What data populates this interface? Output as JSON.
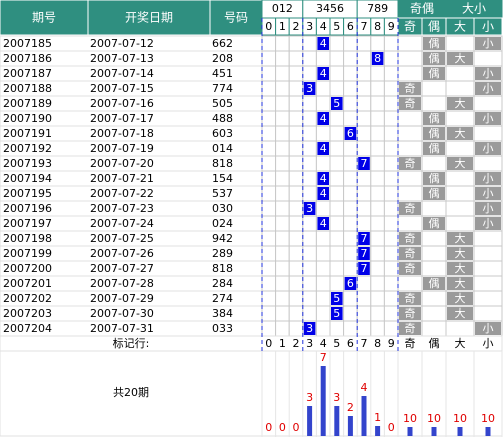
{
  "header": {
    "columns": [
      "期号",
      "开奖日期",
      "号码"
    ],
    "groups": [
      "012",
      "3456",
      "789",
      "奇偶",
      "大小"
    ],
    "digits": [
      "0",
      "1",
      "2",
      "3",
      "4",
      "5",
      "6",
      "7",
      "8",
      "9"
    ],
    "parity": [
      "奇",
      "偶"
    ],
    "size": [
      "大",
      "小"
    ]
  },
  "rows": [
    {
      "issue": "2007185",
      "date": "2007-07-12",
      "number": "662",
      "span": 4,
      "parity": "偶",
      "size": "小"
    },
    {
      "issue": "2007186",
      "date": "2007-07-13",
      "number": "208",
      "span": 8,
      "parity": "偶",
      "size": "大"
    },
    {
      "issue": "2007187",
      "date": "2007-07-14",
      "number": "451",
      "span": 4,
      "parity": "偶",
      "size": "小"
    },
    {
      "issue": "2007188",
      "date": "2007-07-15",
      "number": "774",
      "span": 3,
      "parity": "奇",
      "size": "小"
    },
    {
      "issue": "2007189",
      "date": "2007-07-16",
      "number": "505",
      "span": 5,
      "parity": "奇",
      "size": "大"
    },
    {
      "issue": "2007190",
      "date": "2007-07-17",
      "number": "488",
      "span": 4,
      "parity": "偶",
      "size": "小"
    },
    {
      "issue": "2007191",
      "date": "2007-07-18",
      "number": "603",
      "span": 6,
      "parity": "偶",
      "size": "大"
    },
    {
      "issue": "2007192",
      "date": "2007-07-19",
      "number": "014",
      "span": 4,
      "parity": "偶",
      "size": "小"
    },
    {
      "issue": "2007193",
      "date": "2007-07-20",
      "number": "818",
      "span": 7,
      "parity": "奇",
      "size": "大"
    },
    {
      "issue": "2007194",
      "date": "2007-07-21",
      "number": "154",
      "span": 4,
      "parity": "偶",
      "size": "小"
    },
    {
      "issue": "2007195",
      "date": "2007-07-22",
      "number": "537",
      "span": 4,
      "parity": "偶",
      "size": "小"
    },
    {
      "issue": "2007196",
      "date": "2007-07-23",
      "number": "030",
      "span": 3,
      "parity": "奇",
      "size": "小"
    },
    {
      "issue": "2007197",
      "date": "2007-07-24",
      "number": "024",
      "span": 4,
      "parity": "偶",
      "size": "小"
    },
    {
      "issue": "2007198",
      "date": "2007-07-25",
      "number": "942",
      "span": 7,
      "parity": "奇",
      "size": "大"
    },
    {
      "issue": "2007199",
      "date": "2007-07-26",
      "number": "289",
      "span": 7,
      "parity": "奇",
      "size": "大"
    },
    {
      "issue": "2007200",
      "date": "2007-07-27",
      "number": "818",
      "span": 7,
      "parity": "奇",
      "size": "大"
    },
    {
      "issue": "2007201",
      "date": "2007-07-28",
      "number": "284",
      "span": 6,
      "parity": "偶",
      "size": "大"
    },
    {
      "issue": "2007202",
      "date": "2007-07-29",
      "number": "274",
      "span": 5,
      "parity": "奇",
      "size": "大"
    },
    {
      "issue": "2007203",
      "date": "2007-07-30",
      "number": "384",
      "span": 5,
      "parity": "奇",
      "size": "大"
    },
    {
      "issue": "2007204",
      "date": "2007-07-31",
      "number": "033",
      "span": 3,
      "parity": "奇",
      "size": "小"
    }
  ],
  "footer": {
    "mark_label": "标记行:",
    "total_label": "共20期",
    "counts": [
      0,
      0,
      0,
      3,
      7,
      3,
      2,
      4,
      1,
      0
    ],
    "parity_counts": [
      10,
      10
    ],
    "size_counts": [
      10,
      10
    ]
  }
}
